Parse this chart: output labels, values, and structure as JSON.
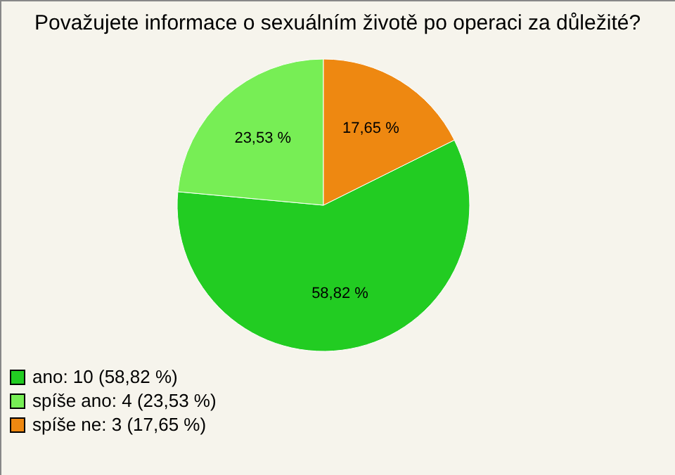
{
  "chart_data": {
    "type": "pie",
    "title": "Považujete informace o sexuálním životě po operaci za důležité?",
    "categories": [
      "ano: 10 (58,82 %)",
      "spíše ano: 4 (23,53 %)",
      "spíše ne: 3 (17,65 %)"
    ],
    "values": [
      58.82,
      23.53,
      17.65
    ],
    "value_labels": [
      "58,82 %",
      "23,53 %",
      "17,65 %"
    ],
    "colors": [
      "#22cc22",
      "#77ee55",
      "#ee8811"
    ],
    "legend": "bottom left"
  }
}
